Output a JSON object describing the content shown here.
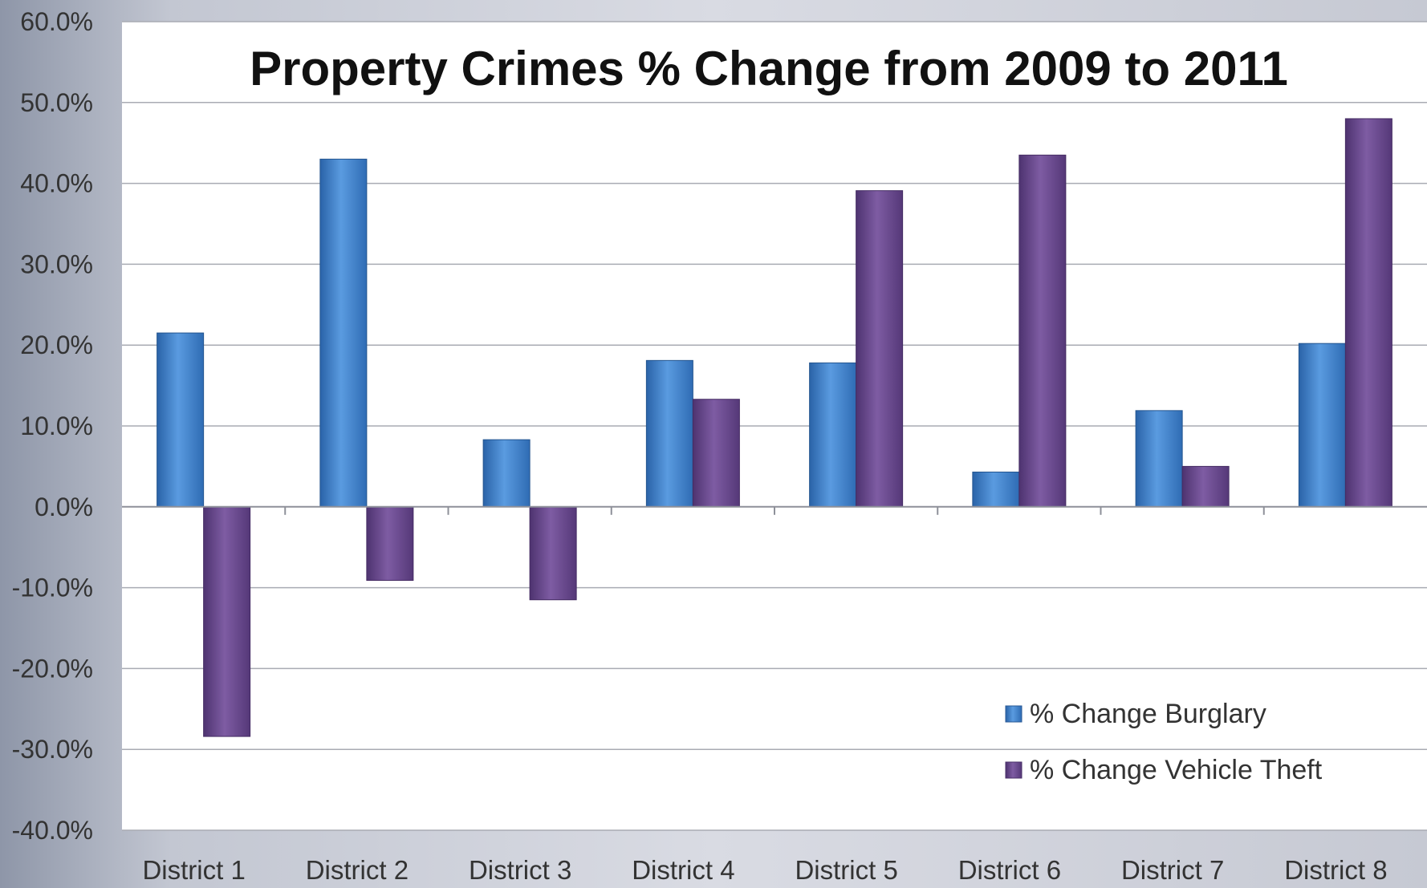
{
  "chart_data": {
    "type": "bar",
    "title": "Property Crimes % Change from 2009 to 2011",
    "xlabel": "",
    "ylabel": "",
    "ylim": [
      -40,
      60
    ],
    "y_ticks": [
      "60.0%",
      "50.0%",
      "40.0%",
      "30.0%",
      "20.0%",
      "10.0%",
      "0.0%",
      "-10.0%",
      "-20.0%",
      "-30.0%",
      "-40.0%"
    ],
    "y_tick_values": [
      60,
      50,
      40,
      30,
      20,
      10,
      0,
      -10,
      -20,
      -30,
      -40
    ],
    "grid": true,
    "legend_position": "bottom-right",
    "categories": [
      "District 1",
      "District 2",
      "District 3",
      "District 4",
      "District 5",
      "District 6",
      "District 7",
      "District 8"
    ],
    "series": [
      {
        "name": "% Change Burglary",
        "color": "#3d7fc8",
        "values": [
          21.5,
          43.0,
          8.3,
          18.1,
          17.8,
          4.3,
          11.9,
          20.2
        ]
      },
      {
        "name": "% Change Vehicle Theft",
        "color": "#6b4a8c",
        "values": [
          -28.4,
          -9.1,
          -11.5,
          13.3,
          39.1,
          43.5,
          5.0,
          48.0
        ]
      }
    ]
  }
}
